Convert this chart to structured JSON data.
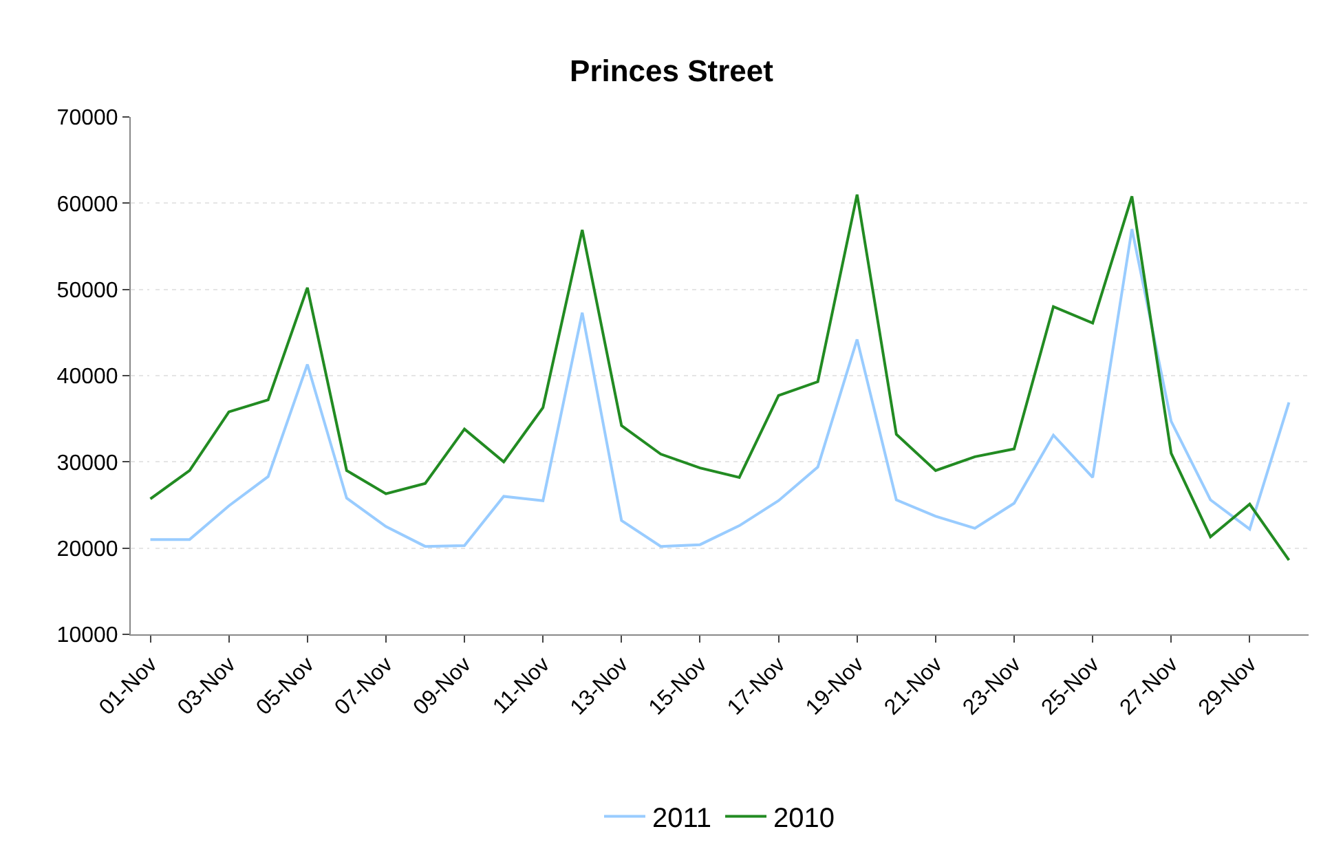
{
  "chart_data": {
    "type": "line",
    "title": "Princes Street",
    "categories": [
      "01-Nov",
      null,
      "03-Nov",
      null,
      "05-Nov",
      null,
      "07-Nov",
      null,
      "09-Nov",
      null,
      "11-Nov",
      null,
      "13-Nov",
      null,
      "15-Nov",
      null,
      "17-Nov",
      null,
      "19-Nov",
      null,
      "21-Nov",
      null,
      "23-Nov",
      null,
      "25-Nov",
      null,
      "27-Nov",
      null,
      "29-Nov",
      null
    ],
    "series": [
      {
        "name": "2011",
        "color": "#99ccff",
        "values": [
          21000,
          21000,
          24900,
          28300,
          41300,
          25800,
          22500,
          20200,
          20300,
          26000,
          25500,
          47300,
          23200,
          20200,
          20400,
          22600,
          25500,
          29400,
          44200,
          25600,
          23700,
          22300,
          25200,
          33100,
          28200,
          57000,
          34700,
          25600,
          22200,
          36900
        ]
      },
      {
        "name": "2010",
        "color": "#228b22",
        "values": [
          25700,
          29000,
          35800,
          37200,
          50200,
          29000,
          26300,
          27500,
          33800,
          30000,
          36300,
          56900,
          34200,
          30900,
          29300,
          28200,
          37700,
          39300,
          61000,
          33200,
          29000,
          30600,
          31500,
          48000,
          46100,
          60800,
          31000,
          21300,
          25100,
          18600
        ]
      }
    ],
    "ylim": [
      10000,
      70000
    ],
    "yticks": [
      10000,
      20000,
      30000,
      40000,
      50000,
      60000,
      70000
    ],
    "grid": "y",
    "legend": "bottom",
    "marker": "none",
    "line_style": "solid"
  }
}
